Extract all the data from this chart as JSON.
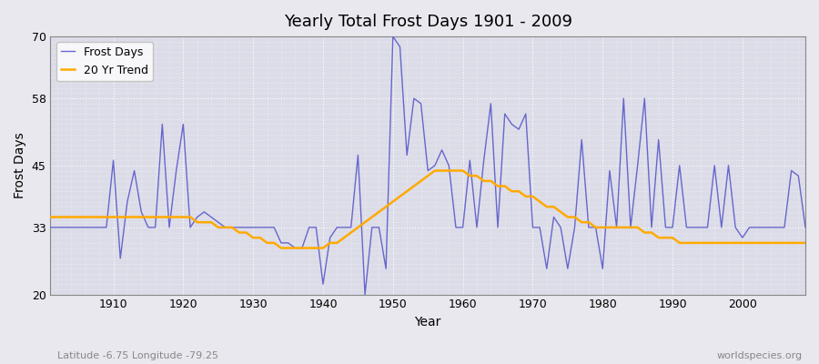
{
  "title": "Yearly Total Frost Days 1901 - 2009",
  "xlabel": "Year",
  "ylabel": "Frost Days",
  "subtitle": "Latitude -6.75 Longitude -79.25",
  "watermark": "worldspecies.org",
  "ylim": [
    20,
    70
  ],
  "yticks": [
    20,
    33,
    45,
    58,
    70
  ],
  "xlim": [
    1901,
    2009
  ],
  "frost_color": "#6666cc",
  "trend_color": "#ffaa00",
  "bg_color": "#e8e8ee",
  "plot_bg_color": "#dcdce8",
  "years": [
    1901,
    1902,
    1903,
    1904,
    1905,
    1906,
    1907,
    1908,
    1909,
    1910,
    1911,
    1912,
    1913,
    1914,
    1915,
    1916,
    1917,
    1918,
    1919,
    1920,
    1921,
    1922,
    1923,
    1924,
    1925,
    1926,
    1927,
    1928,
    1929,
    1930,
    1931,
    1932,
    1933,
    1934,
    1935,
    1936,
    1937,
    1938,
    1939,
    1940,
    1941,
    1942,
    1943,
    1944,
    1945,
    1946,
    1947,
    1948,
    1949,
    1950,
    1951,
    1952,
    1953,
    1954,
    1955,
    1956,
    1957,
    1958,
    1959,
    1960,
    1961,
    1962,
    1963,
    1964,
    1965,
    1966,
    1967,
    1968,
    1969,
    1970,
    1971,
    1972,
    1973,
    1974,
    1975,
    1976,
    1977,
    1978,
    1979,
    1980,
    1981,
    1982,
    1983,
    1984,
    1985,
    1986,
    1987,
    1988,
    1989,
    1990,
    1991,
    1992,
    1993,
    1994,
    1995,
    1996,
    1997,
    1998,
    1999,
    2000,
    2001,
    2002,
    2003,
    2004,
    2005,
    2006,
    2007,
    2008,
    2009
  ],
  "frost_days": [
    33,
    33,
    33,
    33,
    33,
    33,
    33,
    33,
    33,
    46,
    27,
    38,
    44,
    36,
    33,
    33,
    53,
    33,
    44,
    53,
    33,
    35,
    36,
    35,
    34,
    33,
    33,
    33,
    33,
    33,
    33,
    33,
    33,
    30,
    30,
    29,
    29,
    33,
    33,
    22,
    31,
    33,
    33,
    33,
    47,
    20,
    33,
    33,
    25,
    70,
    68,
    47,
    58,
    57,
    44,
    45,
    48,
    45,
    33,
    33,
    46,
    33,
    46,
    57,
    33,
    55,
    53,
    52,
    55,
    33,
    33,
    25,
    35,
    33,
    25,
    33,
    50,
    33,
    33,
    25,
    44,
    33,
    58,
    33,
    45,
    58,
    33,
    50,
    33,
    33,
    45,
    33,
    33,
    33,
    33,
    45,
    33,
    45,
    33,
    31,
    33,
    33,
    33,
    33,
    33,
    33,
    44,
    43,
    33
  ],
  "trend_years": [
    1901,
    1902,
    1903,
    1904,
    1905,
    1906,
    1907,
    1908,
    1909,
    1910,
    1911,
    1912,
    1913,
    1914,
    1915,
    1916,
    1917,
    1918,
    1919,
    1920,
    1921,
    1922,
    1923,
    1924,
    1925,
    1926,
    1927,
    1928,
    1929,
    1930,
    1931,
    1932,
    1933,
    1934,
    1935,
    1936,
    1937,
    1938,
    1939,
    1940,
    1941,
    1942,
    1943,
    1944,
    1945,
    1946,
    1947,
    1948,
    1949,
    1950,
    1951,
    1952,
    1953,
    1954,
    1955,
    1956,
    1957,
    1958,
    1959,
    1960,
    1961,
    1962,
    1963,
    1964,
    1965,
    1966,
    1967,
    1968,
    1969,
    1970,
    1971,
    1972,
    1973,
    1974,
    1975,
    1976,
    1977,
    1978,
    1979,
    1980,
    1981,
    1982,
    1983,
    1984,
    1985,
    1986,
    1987,
    1988,
    1989,
    1990,
    1991,
    1992,
    1993,
    1994,
    1995,
    1996,
    1997,
    1998,
    1999,
    2000,
    2001,
    2002,
    2003,
    2004,
    2005,
    2006,
    2007,
    2008,
    2009
  ],
  "trend_values": [
    35,
    35,
    35,
    35,
    35,
    35,
    35,
    35,
    35,
    35,
    35,
    35,
    35,
    35,
    35,
    35,
    35,
    35,
    35,
    35,
    35,
    34,
    34,
    34,
    33,
    33,
    33,
    32,
    32,
    31,
    31,
    30,
    30,
    29,
    29,
    29,
    29,
    29,
    29,
    29,
    30,
    30,
    31,
    32,
    33,
    34,
    35,
    36,
    37,
    38,
    39,
    40,
    41,
    42,
    43,
    44,
    44,
    44,
    44,
    44,
    43,
    43,
    42,
    42,
    41,
    41,
    40,
    40,
    39,
    39,
    38,
    37,
    37,
    36,
    35,
    35,
    34,
    34,
    33,
    33,
    33,
    33,
    33,
    33,
    33,
    32,
    32,
    31,
    31,
    31,
    30,
    30,
    30,
    30,
    30,
    30,
    30,
    30,
    30,
    30,
    30,
    30,
    30,
    30,
    30,
    30,
    30,
    30,
    30
  ]
}
